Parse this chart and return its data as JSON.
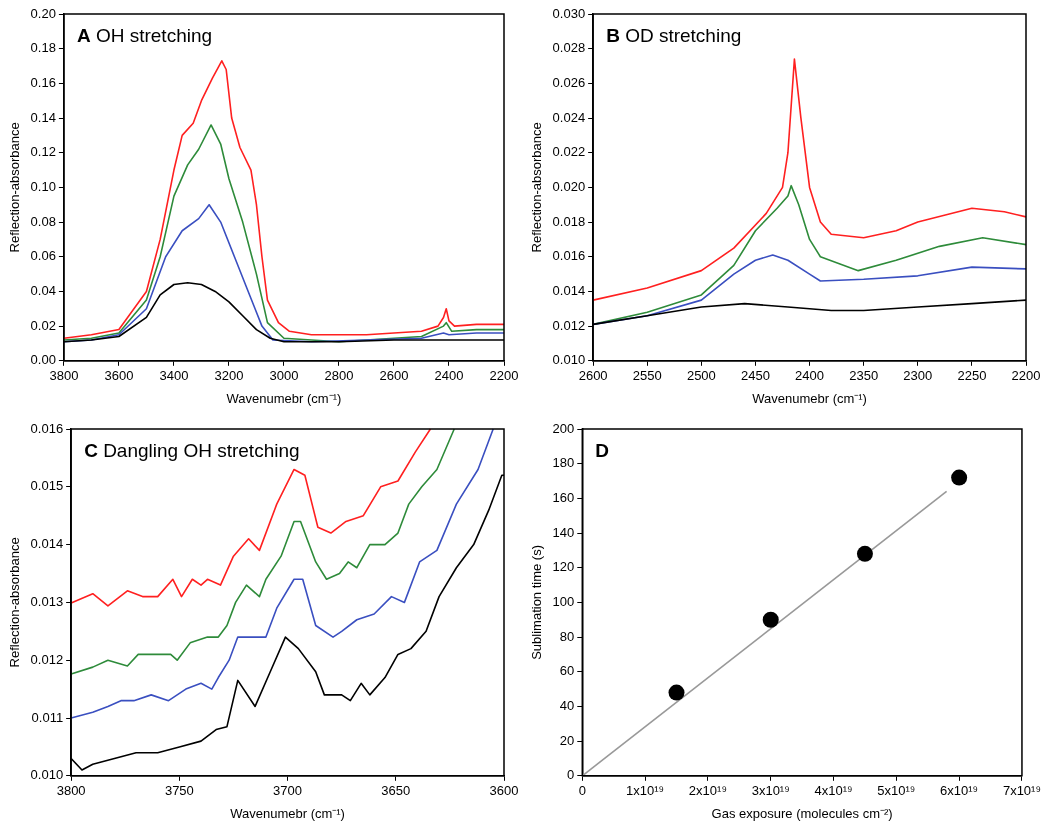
{
  "chart_data": [
    {
      "type": "line",
      "title": "A OH stretching",
      "xlabel": "Wavenumebr (cm⁻¹)",
      "ylabel": "Reflection-absorbance",
      "grid": false,
      "legend": false,
      "marker": "none",
      "xlim": [
        3800,
        2200
      ],
      "xticks": [
        3800,
        3600,
        3400,
        3200,
        3000,
        2800,
        2600,
        2400,
        2200
      ],
      "ylim": [
        0,
        0.2
      ],
      "yticks": [
        {
          "value": 0,
          "label": "0.00"
        },
        {
          "value": 0.02,
          "label": "0.02"
        },
        {
          "value": 0.04,
          "label": "0.04"
        },
        {
          "value": 0.06,
          "label": "0.06"
        },
        {
          "value": 0.08,
          "label": "0.08"
        },
        {
          "value": 0.1,
          "label": "0.10"
        },
        {
          "value": 0.12,
          "label": "0.12"
        },
        {
          "value": 0.14,
          "label": "0.14"
        },
        {
          "value": 0.16,
          "label": "0.16"
        },
        {
          "value": 0.18,
          "label": "0.18"
        },
        {
          "value": 0.2,
          "label": "0.20"
        }
      ],
      "series": [
        {
          "color": "#000000",
          "x": [
            3800,
            3700,
            3600,
            3500,
            3450,
            3400,
            3350,
            3300,
            3250,
            3200,
            3150,
            3100,
            3050,
            3000,
            2800,
            2600,
            2400,
            2200
          ],
          "values": [
            0.011,
            0.012,
            0.014,
            0.025,
            0.038,
            0.044,
            0.045,
            0.044,
            0.04,
            0.034,
            0.026,
            0.018,
            0.013,
            0.011,
            0.011,
            0.012,
            0.012,
            0.012
          ]
        },
        {
          "color": "#3a4fc0",
          "x": [
            3800,
            3700,
            3600,
            3500,
            3430,
            3370,
            3310,
            3272,
            3230,
            3180,
            3130,
            3080,
            3040,
            2900,
            2700,
            2500,
            2420,
            2400,
            2300,
            2200
          ],
          "values": [
            0.011,
            0.012,
            0.015,
            0.03,
            0.06,
            0.075,
            0.082,
            0.09,
            0.08,
            0.06,
            0.04,
            0.02,
            0.012,
            0.011,
            0.012,
            0.013,
            0.016,
            0.015,
            0.016,
            0.016
          ]
        },
        {
          "color": "#2e8b3a",
          "x": [
            3800,
            3700,
            3600,
            3500,
            3450,
            3400,
            3350,
            3310,
            3265,
            3230,
            3200,
            3150,
            3100,
            3060,
            3000,
            2800,
            2600,
            2500,
            2420,
            2410,
            2390,
            2300,
            2200
          ],
          "values": [
            0.012,
            0.013,
            0.016,
            0.035,
            0.06,
            0.095,
            0.113,
            0.122,
            0.136,
            0.125,
            0.105,
            0.08,
            0.05,
            0.022,
            0.013,
            0.011,
            0.013,
            0.014,
            0.02,
            0.022,
            0.017,
            0.018,
            0.018
          ]
        },
        {
          "color": "#ff2020",
          "x": [
            3800,
            3700,
            3600,
            3500,
            3450,
            3400,
            3370,
            3330,
            3300,
            3260,
            3226,
            3210,
            3190,
            3160,
            3120,
            3100,
            3080,
            3060,
            3020,
            2980,
            2900,
            2700,
            2500,
            2440,
            2420,
            2410,
            2400,
            2380,
            2300,
            2200
          ],
          "values": [
            0.013,
            0.015,
            0.018,
            0.04,
            0.07,
            0.11,
            0.13,
            0.137,
            0.15,
            0.163,
            0.173,
            0.168,
            0.14,
            0.123,
            0.11,
            0.09,
            0.06,
            0.035,
            0.022,
            0.017,
            0.015,
            0.015,
            0.017,
            0.02,
            0.025,
            0.03,
            0.023,
            0.02,
            0.021,
            0.021
          ]
        }
      ]
    },
    {
      "type": "line",
      "title": "B OD stretching",
      "xlabel": "Wavenumebr (cm⁻¹)",
      "ylabel": "Reflection-absorbance",
      "grid": false,
      "legend": false,
      "marker": "none",
      "xlim": [
        2600,
        2200
      ],
      "xticks": [
        2600,
        2550,
        2500,
        2450,
        2400,
        2350,
        2300,
        2250,
        2200
      ],
      "ylim": [
        0.01,
        0.03
      ],
      "yticks": [
        {
          "value": 0.01,
          "label": "0.010"
        },
        {
          "value": 0.012,
          "label": "0.012"
        },
        {
          "value": 0.014,
          "label": "0.014"
        },
        {
          "value": 0.016,
          "label": "0.016"
        },
        {
          "value": 0.018,
          "label": "0.018"
        },
        {
          "value": 0.02,
          "label": "0.020"
        },
        {
          "value": 0.022,
          "label": "0.022"
        },
        {
          "value": 0.024,
          "label": "0.024"
        },
        {
          "value": 0.026,
          "label": "0.026"
        },
        {
          "value": 0.028,
          "label": "0.028"
        },
        {
          "value": 0.03,
          "label": "0.030"
        }
      ],
      "series": [
        {
          "color": "#000000",
          "x": [
            2600,
            2550,
            2500,
            2460,
            2420,
            2380,
            2350,
            2300,
            2250,
            2200
          ],
          "values": [
            0.0121,
            0.0126,
            0.0131,
            0.0133,
            0.0131,
            0.0129,
            0.0129,
            0.0131,
            0.0133,
            0.0135
          ]
        },
        {
          "color": "#3a4fc0",
          "x": [
            2600,
            2550,
            2500,
            2470,
            2450,
            2434,
            2420,
            2400,
            2390,
            2350,
            2300,
            2250,
            2200
          ],
          "values": [
            0.0121,
            0.0126,
            0.0135,
            0.015,
            0.0158,
            0.0161,
            0.0158,
            0.015,
            0.0146,
            0.0147,
            0.0149,
            0.0154,
            0.0153
          ]
        },
        {
          "color": "#2e8b3a",
          "x": [
            2600,
            2550,
            2500,
            2470,
            2450,
            2430,
            2420,
            2417,
            2410,
            2400,
            2390,
            2355,
            2320,
            2280,
            2240,
            2200
          ],
          "values": [
            0.0121,
            0.0128,
            0.0138,
            0.0155,
            0.0175,
            0.0188,
            0.0195,
            0.0201,
            0.019,
            0.017,
            0.016,
            0.0152,
            0.0158,
            0.0166,
            0.0171,
            0.0167
          ]
        },
        {
          "color": "#ff2020",
          "x": [
            2600,
            2550,
            2500,
            2470,
            2440,
            2425,
            2420,
            2414,
            2408,
            2400,
            2390,
            2380,
            2350,
            2320,
            2300,
            2250,
            2220,
            2200
          ],
          "values": [
            0.0135,
            0.0142,
            0.0152,
            0.0165,
            0.0185,
            0.02,
            0.022,
            0.0274,
            0.024,
            0.02,
            0.018,
            0.0173,
            0.0171,
            0.0175,
            0.018,
            0.0188,
            0.0186,
            0.0183
          ]
        }
      ]
    },
    {
      "type": "line",
      "title": "C Dangling OH stretching",
      "xlabel": "Wavenumebr (cm⁻¹)",
      "ylabel": "Reflection-absorbance",
      "grid": false,
      "legend": false,
      "marker": "none",
      "xlim": [
        3800,
        3600
      ],
      "xticks": [
        3800,
        3750,
        3700,
        3650,
        3600
      ],
      "ylim": [
        0.01,
        0.016
      ],
      "yticks": [
        {
          "value": 0.01,
          "label": "0.010"
        },
        {
          "value": 0.011,
          "label": "0.011"
        },
        {
          "value": 0.012,
          "label": "0.012"
        },
        {
          "value": 0.013,
          "label": "0.013"
        },
        {
          "value": 0.014,
          "label": "0.014"
        },
        {
          "value": 0.015,
          "label": "0.015"
        },
        {
          "value": 0.016,
          "label": "0.016"
        }
      ],
      "series": [
        {
          "color": "#000000",
          "x": [
            3800,
            3795,
            3790,
            3780,
            3770,
            3760,
            3750,
            3740,
            3733,
            3728,
            3723,
            3715,
            3708,
            3701,
            3695,
            3687,
            3683,
            3675,
            3671,
            3666,
            3662,
            3655,
            3649,
            3643,
            3636,
            3630,
            3622,
            3614,
            3607,
            3601,
            3600
          ],
          "values": [
            0.0103,
            0.0101,
            0.0102,
            0.0103,
            0.0104,
            0.0104,
            0.0105,
            0.0106,
            0.0108,
            0.01085,
            0.01165,
            0.0112,
            0.0118,
            0.0124,
            0.0122,
            0.0118,
            0.0114,
            0.0114,
            0.0113,
            0.0116,
            0.0114,
            0.0117,
            0.0121,
            0.0122,
            0.0125,
            0.0131,
            0.0136,
            0.014,
            0.0146,
            0.0152,
            0.0152
          ]
        },
        {
          "color": "#3a4fc0",
          "x": [
            3800,
            3790,
            3783,
            3777,
            3771,
            3763,
            3755,
            3747,
            3740,
            3735,
            3732,
            3727,
            3723,
            3716,
            3710,
            3705,
            3697,
            3693,
            3687,
            3679,
            3675,
            3668,
            3660,
            3652,
            3646,
            3639,
            3631,
            3622,
            3612,
            3605
          ],
          "values": [
            0.011,
            0.0111,
            0.0112,
            0.0113,
            0.0113,
            0.0114,
            0.0113,
            0.0115,
            0.0116,
            0.0115,
            0.0117,
            0.012,
            0.0124,
            0.0124,
            0.0124,
            0.0129,
            0.0134,
            0.0134,
            0.0126,
            0.0124,
            0.0125,
            0.0127,
            0.0128,
            0.0131,
            0.013,
            0.0137,
            0.0139,
            0.0147,
            0.0153,
            0.016
          ]
        },
        {
          "color": "#2e8b3a",
          "x": [
            3800,
            3790,
            3783,
            3774,
            3769,
            3761,
            3754,
            3751,
            3745,
            3737,
            3732,
            3728,
            3724,
            3719,
            3713,
            3710,
            3703,
            3697,
            3694,
            3687,
            3682,
            3676,
            3672,
            3668,
            3662,
            3655,
            3649,
            3644,
            3638,
            3631,
            3623
          ],
          "values": [
            0.01176,
            0.01188,
            0.012,
            0.0119,
            0.0121,
            0.0121,
            0.0121,
            0.012,
            0.0123,
            0.0124,
            0.0124,
            0.0126,
            0.013,
            0.0133,
            0.0131,
            0.0134,
            0.0138,
            0.0144,
            0.0144,
            0.0137,
            0.0134,
            0.0135,
            0.0137,
            0.0136,
            0.014,
            0.014,
            0.0142,
            0.0147,
            0.015,
            0.0153,
            0.016
          ]
        },
        {
          "color": "#ff2020",
          "x": [
            3800,
            3790,
            3783,
            3774,
            3767,
            3760,
            3753,
            3749,
            3744,
            3740,
            3737,
            3731,
            3725,
            3718,
            3713,
            3705,
            3697,
            3692,
            3686,
            3680,
            3673,
            3665,
            3657,
            3649,
            3641,
            3634
          ],
          "values": [
            0.01299,
            0.01315,
            0.01294,
            0.0132,
            0.0131,
            0.0131,
            0.0134,
            0.0131,
            0.0134,
            0.0133,
            0.0134,
            0.0133,
            0.0138,
            0.0141,
            0.0139,
            0.0147,
            0.0153,
            0.0152,
            0.0143,
            0.0142,
            0.0144,
            0.0145,
            0.015,
            0.0151,
            0.0156,
            0.016
          ]
        }
      ]
    },
    {
      "type": "scatter",
      "title": "D",
      "xlabel": "Gas exposure (molecules cm⁻²)",
      "ylabel": "Sublimation time (s)",
      "grid": false,
      "legend": false,
      "xlim": [
        0,
        7e+19
      ],
      "xticks": [
        {
          "value": 0,
          "label": "0"
        },
        {
          "value": 1e+19,
          "label": "1x10¹⁹"
        },
        {
          "value": 2e+19,
          "label": "2x10¹⁹"
        },
        {
          "value": 3e+19,
          "label": "3x10¹⁹"
        },
        {
          "value": 4e+19,
          "label": "4x10¹⁹"
        },
        {
          "value": 5e+19,
          "label": "5x10¹⁹"
        },
        {
          "value": 6e+19,
          "label": "6x10¹⁹"
        },
        {
          "value": 7e+19,
          "label": "7x10¹⁹"
        }
      ],
      "ylim": [
        0,
        200
      ],
      "yticks": [
        0,
        20,
        40,
        60,
        80,
        100,
        120,
        140,
        160,
        180,
        200
      ],
      "series": [
        {
          "type": "line",
          "marker": "none",
          "color": "#999999",
          "x": [
            0,
            5.8e+19
          ],
          "values": [
            0,
            164
          ]
        },
        {
          "marker": "circle",
          "color": "#000000",
          "x": [
            1.5e+19,
            3e+19,
            4.5e+19,
            6e+19
          ],
          "values": [
            48,
            90,
            128,
            172
          ]
        }
      ]
    }
  ]
}
